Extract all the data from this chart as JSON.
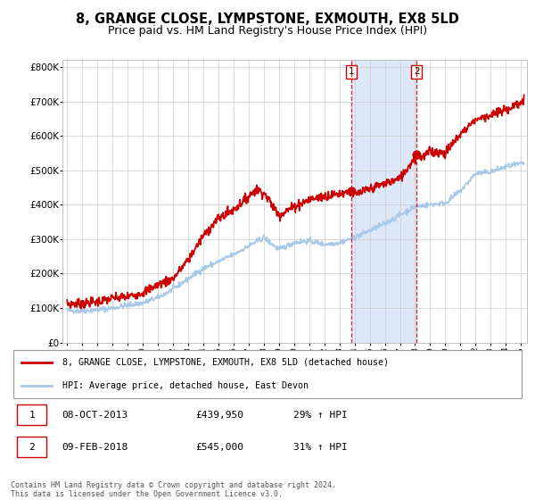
{
  "title": "8, GRANGE CLOSE, LYMPSTONE, EXMOUTH, EX8 5LD",
  "subtitle": "Price paid vs. HM Land Registry's House Price Index (HPI)",
  "title_fontsize": 10.5,
  "subtitle_fontsize": 9,
  "hpi_color": "#A8C8E8",
  "price_color": "#CC0000",
  "background_color": "#FFFFFF",
  "plot_bg_color": "#FFFFFF",
  "grid_color": "#CCCCCC",
  "shade_color": "#DCE8F8",
  "ylim": [
    0,
    820000
  ],
  "xlim_start": 1994.7,
  "xlim_end": 2025.4,
  "sale1_date": 2013.77,
  "sale1_price": 439950,
  "sale2_date": 2018.1,
  "sale2_price": 545000,
  "sale1_box_date": "08-OCT-2013",
  "sale1_box_price": "£439,950",
  "sale1_box_hpi": "29% ↑ HPI",
  "sale2_box_date": "09-FEB-2018",
  "sale2_box_price": "£545,000",
  "sale2_box_hpi": "31% ↑ HPI",
  "legend_line1": "8, GRANGE CLOSE, LYMPSTONE, EXMOUTH, EX8 5LD (detached house)",
  "legend_line2": "HPI: Average price, detached house, East Devon",
  "footer": "Contains HM Land Registry data © Crown copyright and database right 2024.\nThis data is licensed under the Open Government Licence v3.0.",
  "yticks": [
    0,
    100000,
    200000,
    300000,
    400000,
    500000,
    600000,
    700000,
    800000
  ],
  "ytick_labels": [
    "£0",
    "£100K",
    "£200K",
    "£300K",
    "£400K",
    "£500K",
    "£600K",
    "£700K",
    "£800K"
  ]
}
